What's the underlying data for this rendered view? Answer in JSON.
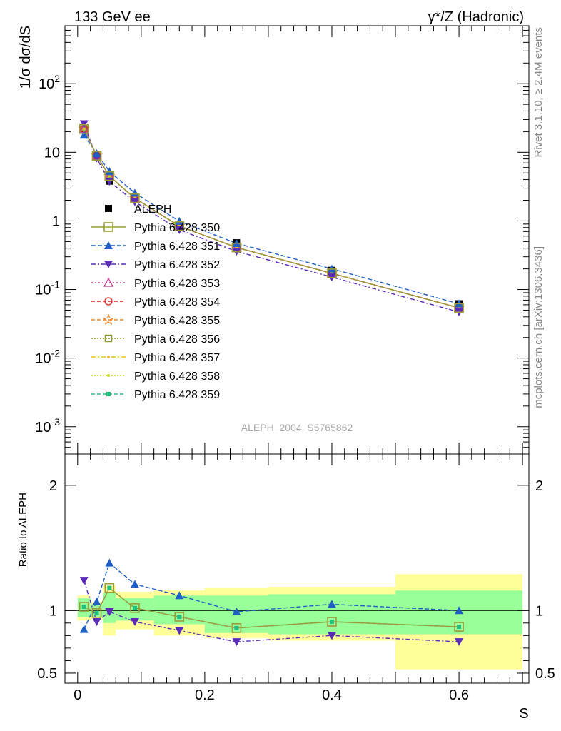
{
  "header": {
    "left": "133 GeV ee",
    "right": "γ*/Z (Hadronic)"
  },
  "side_labels": {
    "rivet": "Rivet 3.1.10, ≥ 2.4M events",
    "mcplots": "mcplots.cern.ch [arXiv:1306.3436]"
  },
  "colors": {
    "band_inner": "#99ff99",
    "band_outer": "#ffff99"
  },
  "chart_data": [
    {
      "type": "line",
      "panel": "main",
      "ylabel": "1/σ  dσ/dS",
      "xlabel": "",
      "y_scale": "log",
      "ylim": [
        0.0004,
        700
      ],
      "xlim": [
        -0.02,
        0.71
      ],
      "y_tick_labels": [
        "10^-3",
        "10^-2",
        "10^-1",
        "1",
        "10",
        "10^2"
      ],
      "watermark": "ALEPH_2004_S5765862",
      "legend_position": "middle-left",
      "x": [
        0.01,
        0.03,
        0.05,
        0.09,
        0.16,
        0.25,
        0.4,
        0.6
      ],
      "data": {
        "name": "ALEPH",
        "values": [
          21.0,
          9.0,
          3.8,
          2.1,
          0.88,
          0.48,
          0.19,
          0.062
        ]
      },
      "series": [
        {
          "name": "Pythia 6.428 350",
          "color": "#9b9b3a",
          "dash": "",
          "marker": "open-square",
          "values": [
            21.8,
            8.9,
            4.5,
            2.14,
            0.84,
            0.41,
            0.172,
            0.054
          ]
        },
        {
          "name": "Pythia 6.428 351",
          "color": "#1f5fc6",
          "dash": "6,3",
          "marker": "triangle-up",
          "values": [
            17.8,
            9.6,
            5.25,
            2.55,
            0.99,
            0.47,
            0.2,
            0.062
          ]
        },
        {
          "name": "Pythia 6.428 352",
          "color": "#5a2ab8",
          "dash": "6,3,2,3",
          "marker": "triangle-down",
          "values": [
            26.0,
            8.2,
            3.75,
            1.9,
            0.74,
            0.36,
            0.152,
            0.047
          ]
        },
        {
          "name": "Pythia 6.428 353",
          "color": "#c8409a",
          "dash": "2,3",
          "marker": "open-triangle",
          "values": [
            21.8,
            8.9,
            4.5,
            2.14,
            0.84,
            0.41,
            0.172,
            0.054
          ]
        },
        {
          "name": "Pythia 6.428 354",
          "color": "#e02020",
          "dash": "5,3",
          "marker": "open-circle",
          "values": [
            21.8,
            8.9,
            4.5,
            2.14,
            0.84,
            0.41,
            0.172,
            0.054
          ]
        },
        {
          "name": "Pythia 6.428 355",
          "color": "#f08020",
          "dash": "5,3",
          "marker": "open-star",
          "values": [
            21.8,
            8.9,
            4.5,
            2.14,
            0.84,
            0.41,
            0.172,
            0.054
          ]
        },
        {
          "name": "Pythia 6.428 356",
          "color": "#8a9a20",
          "dash": "2,2",
          "marker": "open-square-small",
          "values": [
            21.8,
            8.9,
            4.5,
            2.14,
            0.84,
            0.41,
            0.172,
            0.054
          ]
        },
        {
          "name": "Pythia 6.428 357",
          "color": "#e8c020",
          "dash": "6,3,2,3",
          "marker": "small-dot",
          "values": [
            21.8,
            8.9,
            4.5,
            2.14,
            0.84,
            0.41,
            0.172,
            0.054
          ]
        },
        {
          "name": "Pythia 6.428 358",
          "color": "#c8d820",
          "dash": "2,2",
          "marker": "small-dot",
          "values": [
            21.8,
            8.9,
            4.5,
            2.14,
            0.84,
            0.41,
            0.172,
            0.054
          ]
        },
        {
          "name": "Pythia 6.428 359",
          "color": "#20c080",
          "dash": "5,3",
          "marker": "small-square",
          "values": [
            21.8,
            8.9,
            4.5,
            2.14,
            0.84,
            0.41,
            0.172,
            0.054
          ]
        }
      ]
    },
    {
      "type": "line",
      "panel": "ratio",
      "ylabel": "Ratio to ALEPH",
      "xlabel": "S",
      "ylim": [
        0.42,
        2.25
      ],
      "xlim": [
        -0.02,
        0.71
      ],
      "x_ticks": [
        0,
        0.2,
        0.4,
        0.6
      ],
      "y_ticks": [
        0.5,
        1,
        2
      ],
      "x": [
        0.01,
        0.03,
        0.05,
        0.09,
        0.16,
        0.25,
        0.4,
        0.6
      ],
      "bands": [
        {
          "x0": 0.0,
          "x1": 0.02,
          "inner": [
            0.95,
            1.1
          ],
          "outer": [
            0.92,
            1.12
          ]
        },
        {
          "x0": 0.02,
          "x1": 0.04,
          "inner": [
            0.95,
            1.05
          ],
          "outer": [
            0.93,
            1.07
          ]
        },
        {
          "x0": 0.04,
          "x1": 0.06,
          "inner": [
            0.9,
            1.14
          ],
          "outer": [
            0.8,
            1.2
          ]
        },
        {
          "x0": 0.06,
          "x1": 0.12,
          "inner": [
            0.92,
            1.1
          ],
          "outer": [
            0.85,
            1.15
          ]
        },
        {
          "x0": 0.12,
          "x1": 0.2,
          "inner": [
            0.89,
            1.12
          ],
          "outer": [
            0.8,
            1.16
          ]
        },
        {
          "x0": 0.2,
          "x1": 0.3,
          "inner": [
            0.82,
            1.12
          ],
          "outer": [
            0.78,
            1.18
          ]
        },
        {
          "x0": 0.3,
          "x1": 0.5,
          "inner": [
            0.81,
            1.13
          ],
          "outer": [
            0.76,
            1.19
          ]
        },
        {
          "x0": 0.5,
          "x1": 0.7,
          "inner": [
            0.81,
            1.16
          ],
          "outer": [
            0.53,
            1.29
          ]
        }
      ],
      "series": [
        {
          "name": "Pythia 6.428 350",
          "color": "#9b9b3a",
          "dash": "",
          "marker": "open-square",
          "values": [
            1.03,
            0.98,
            1.18,
            1.02,
            0.95,
            0.86,
            0.91,
            0.87
          ]
        },
        {
          "name": "Pythia 6.428 351",
          "color": "#1f5fc6",
          "dash": "6,3",
          "marker": "triangle-up",
          "values": [
            0.85,
            1.07,
            1.38,
            1.21,
            1.12,
            0.99,
            1.05,
            1.0
          ]
        },
        {
          "name": "Pythia 6.428 352",
          "color": "#5a2ab8",
          "dash": "6,3,2,3",
          "marker": "triangle-down",
          "values": [
            1.24,
            0.91,
            0.99,
            0.91,
            0.84,
            0.75,
            0.8,
            0.75
          ]
        },
        {
          "name": "Pythia 6.428 359",
          "color": "#20c080",
          "dash": "5,3",
          "marker": "small-square",
          "values": [
            1.03,
            0.98,
            1.18,
            1.02,
            0.95,
            0.86,
            0.91,
            0.87
          ]
        }
      ]
    }
  ]
}
